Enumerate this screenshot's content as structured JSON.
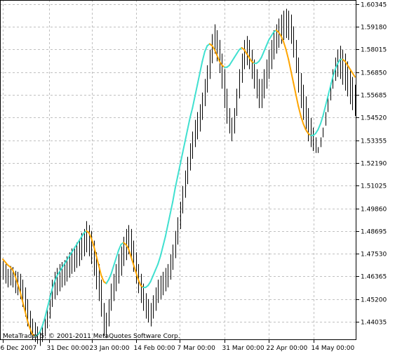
{
  "copyright": "MetaTrader 5, © 2001-2011 MetaQuotes Software Corp.",
  "colors": {
    "background": "#ffffff",
    "grid": "#c0c0c0",
    "bars": "#000000",
    "ma_up": "#40e0d0",
    "ma_down": "#ffa500",
    "axis": "#000000"
  },
  "chart_data": {
    "type": "line",
    "title": "",
    "xlabel": "",
    "ylabel": "",
    "grid": true,
    "ylim": [
      1.431,
      1.6055
    ],
    "y_ticks": [
      "1.60345",
      "1.59180",
      "1.58015",
      "1.56850",
      "1.55685",
      "1.54520",
      "1.53355",
      "1.52190",
      "1.51025",
      "1.49860",
      "1.48695",
      "1.47530",
      "1.46365",
      "1.45200",
      "1.44035"
    ],
    "x_ticks": [
      "6 Dec 2007",
      "31 Dec 00:00",
      "23 Jan 00:00",
      "14 Feb 00:00",
      "7 Mar 00:00",
      "31 Mar 00:00",
      "22 Apr 00:00",
      "14 May 00:00"
    ],
    "series": [
      {
        "type": "bars",
        "high": [
          1.4715,
          1.47,
          1.4675,
          1.469,
          1.4685,
          1.4665,
          1.466,
          1.465,
          1.462,
          1.458,
          1.452,
          1.446,
          1.442,
          1.44,
          1.438,
          1.436,
          1.439,
          1.443,
          1.448,
          1.455,
          1.462,
          1.466,
          1.468,
          1.47,
          1.471,
          1.472,
          1.474,
          1.476,
          1.478,
          1.479,
          1.481,
          1.482,
          1.486,
          1.488,
          1.492,
          1.49,
          1.487,
          1.482,
          1.476,
          1.47,
          1.462,
          1.45,
          1.445,
          1.452,
          1.46,
          1.465,
          1.47,
          1.475,
          1.479,
          1.484,
          1.488,
          1.49,
          1.488,
          1.482,
          1.476,
          1.47,
          1.465,
          1.46,
          1.455,
          1.452,
          1.45,
          1.454,
          1.458,
          1.462,
          1.464,
          1.466,
          1.468,
          1.47,
          1.475,
          1.48,
          1.487,
          1.494,
          1.502,
          1.51,
          1.518,
          1.525,
          1.532,
          1.538,
          1.544,
          1.548,
          1.552,
          1.558,
          1.565,
          1.572,
          1.58,
          1.588,
          1.593,
          1.59,
          1.585,
          1.578,
          1.57,
          1.56,
          1.55,
          1.545,
          1.55,
          1.56,
          1.57,
          1.578,
          1.585,
          1.587,
          1.585,
          1.58,
          1.575,
          1.57,
          1.565,
          1.565,
          1.57,
          1.575,
          1.58,
          1.585,
          1.59,
          1.593,
          1.596,
          1.598,
          1.6,
          1.601,
          1.6,
          1.598,
          1.592,
          1.585,
          1.576,
          1.568,
          1.562,
          1.556,
          1.55,
          1.545,
          1.54,
          1.535,
          1.53,
          1.535,
          1.54,
          1.548,
          1.556,
          1.563,
          1.57,
          1.576,
          1.58,
          1.582,
          1.58,
          1.578,
          1.574,
          1.57,
          1.566,
          1.562
        ],
        "low": [
          1.462,
          1.46,
          1.458,
          1.459,
          1.458,
          1.455,
          1.454,
          1.452,
          1.448,
          1.443,
          1.438,
          1.434,
          1.431,
          1.43,
          1.429,
          1.428,
          1.43,
          1.433,
          1.437,
          1.442,
          1.448,
          1.452,
          1.454,
          1.456,
          1.458,
          1.459,
          1.461,
          1.463,
          1.465,
          1.466,
          1.468,
          1.469,
          1.472,
          1.474,
          1.476,
          1.474,
          1.47,
          1.464,
          1.457,
          1.451,
          1.443,
          1.433,
          1.432,
          1.438,
          1.446,
          1.451,
          1.456,
          1.46,
          1.464,
          1.469,
          1.472,
          1.475,
          1.472,
          1.466,
          1.46,
          1.455,
          1.45,
          1.446,
          1.442,
          1.44,
          1.438,
          1.442,
          1.446,
          1.45,
          1.452,
          1.454,
          1.456,
          1.458,
          1.462,
          1.467,
          1.473,
          1.48,
          1.488,
          1.496,
          1.504,
          1.511,
          1.518,
          1.524,
          1.53,
          1.534,
          1.538,
          1.544,
          1.551,
          1.558,
          1.565,
          1.573,
          1.578,
          1.574,
          1.568,
          1.56,
          1.55,
          1.542,
          1.537,
          1.533,
          1.537,
          1.546,
          1.555,
          1.563,
          1.57,
          1.572,
          1.57,
          1.565,
          1.56,
          1.555,
          1.55,
          1.55,
          1.555,
          1.56,
          1.565,
          1.57,
          1.575,
          1.578,
          1.581,
          1.583,
          1.585,
          1.586,
          1.585,
          1.583,
          1.576,
          1.568,
          1.558,
          1.55,
          1.544,
          1.538,
          1.533,
          1.53,
          1.528,
          1.527,
          1.527,
          1.53,
          1.535,
          1.541,
          1.548,
          1.554,
          1.56,
          1.564,
          1.566,
          1.565,
          1.562,
          1.559,
          1.556,
          1.552,
          1.549,
          1.546
        ]
      },
      {
        "type": "line",
        "values": [
          1.4725,
          1.471,
          1.4695,
          1.4685,
          1.467,
          1.464,
          1.46,
          1.456,
          1.451,
          1.446,
          1.441,
          1.437,
          1.434,
          1.433,
          1.4335,
          1.435,
          1.438,
          1.442,
          1.447,
          1.452,
          1.457,
          1.461,
          1.464,
          1.466,
          1.468,
          1.47,
          1.472,
          1.474,
          1.476,
          1.478,
          1.48,
          1.482,
          1.484,
          1.486,
          1.487,
          1.486,
          1.483,
          1.479,
          1.474,
          1.469,
          1.464,
          1.461,
          1.46,
          1.462,
          1.465,
          1.469,
          1.473,
          1.477,
          1.48,
          1.481,
          1.48,
          1.478,
          1.474,
          1.47,
          1.466,
          1.462,
          1.459,
          1.458,
          1.458,
          1.459,
          1.461,
          1.464,
          1.467,
          1.47,
          1.474,
          1.479,
          1.484,
          1.49,
          1.496,
          1.502,
          1.509,
          1.515,
          1.521,
          1.527,
          1.533,
          1.539,
          1.545,
          1.55,
          1.556,
          1.562,
          1.568,
          1.574,
          1.579,
          1.582,
          1.583,
          1.582,
          1.58,
          1.577,
          1.574,
          1.572,
          1.571,
          1.571,
          1.572,
          1.574,
          1.576,
          1.578,
          1.58,
          1.581,
          1.58,
          1.578,
          1.576,
          1.574,
          1.573,
          1.573,
          1.574,
          1.576,
          1.579,
          1.582,
          1.585,
          1.587,
          1.589,
          1.59,
          1.589,
          1.587,
          1.584,
          1.58,
          1.575,
          1.569,
          1.563,
          1.557,
          1.551,
          1.546,
          1.542,
          1.539,
          1.537,
          1.536,
          1.536,
          1.537,
          1.539,
          1.542,
          1.546,
          1.551,
          1.556,
          1.561,
          1.566,
          1.57,
          1.573,
          1.575,
          1.575,
          1.574,
          1.572,
          1.57,
          1.568,
          1.566
        ]
      }
    ]
  }
}
